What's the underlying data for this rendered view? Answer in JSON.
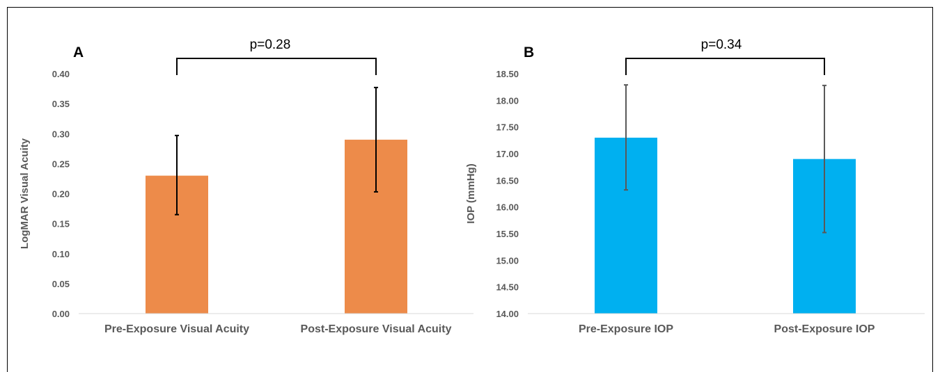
{
  "chart_data": [
    {
      "type": "bar",
      "panel_label": "A",
      "categories": [
        "Pre-Exposure Visual Acuity",
        "Post-Exposure Visual Acuity"
      ],
      "values": [
        0.23,
        0.29
      ],
      "error_bars": [
        [
          0.165,
          0.297
        ],
        [
          0.203,
          0.377
        ]
      ],
      "ylabel": "LogMAR Visual Acuity",
      "ylim": [
        0,
        0.4
      ],
      "yticks": [
        "0.00",
        "0.05",
        "0.10",
        "0.15",
        "0.20",
        "0.25",
        "0.30",
        "0.35",
        "0.40"
      ],
      "annotation": "p=0.28",
      "bar_color": "#ED8B4A",
      "errorbar_color": "#000000",
      "grid": false
    },
    {
      "type": "bar",
      "panel_label": "B",
      "categories": [
        "Pre-Exposure IOP",
        "Post-Exposure IOP"
      ],
      "values": [
        17.3,
        16.9
      ],
      "error_bars": [
        [
          16.32,
          18.29
        ],
        [
          15.52,
          18.28
        ]
      ],
      "ylabel": "IOP (mmHg)",
      "ylim": [
        14.0,
        18.5
      ],
      "yticks": [
        "14.00",
        "14.50",
        "15.00",
        "15.50",
        "16.00",
        "16.50",
        "17.00",
        "17.50",
        "18.00",
        "18.50"
      ],
      "annotation": "p=0.34",
      "bar_color": "#00B0F0",
      "errorbar_color": "#595959",
      "grid": false
    }
  ]
}
